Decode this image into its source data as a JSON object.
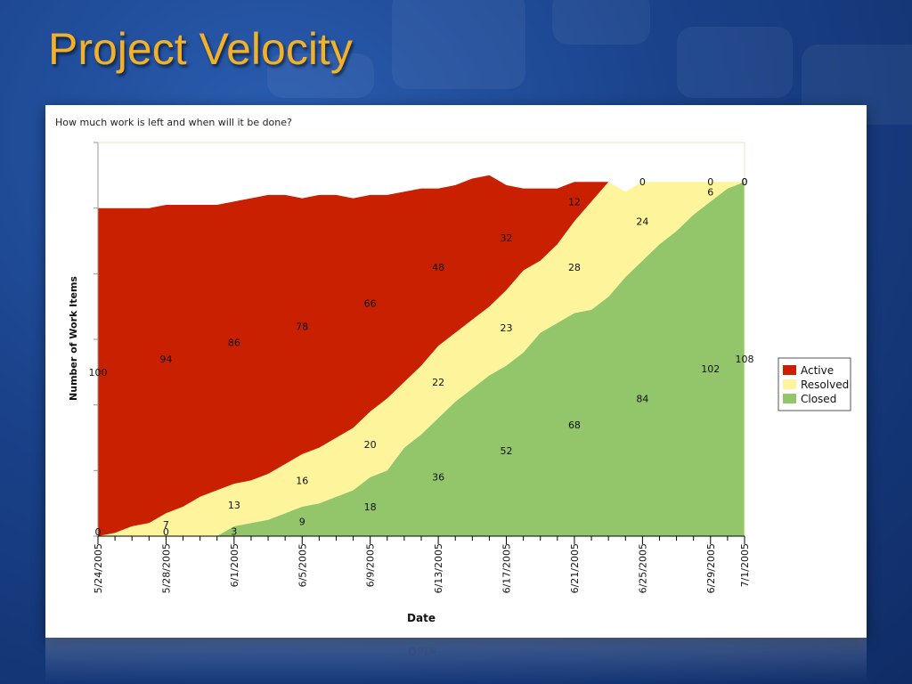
{
  "slide": {
    "title": "Project Velocity"
  },
  "chart_data": {
    "type": "area",
    "stacked": true,
    "title": "How much work is left and when will it be done?",
    "xlabel": "Date",
    "ylabel": "Number of Work Items",
    "x": [
      "5/24/2005",
      "5/25/2005",
      "5/26/2005",
      "5/27/2005",
      "5/28/2005",
      "5/29/2005",
      "5/30/2005",
      "5/31/2005",
      "6/1/2005",
      "6/2/2005",
      "6/3/2005",
      "6/4/2005",
      "6/5/2005",
      "6/6/2005",
      "6/7/2005",
      "6/8/2005",
      "6/9/2005",
      "6/10/2005",
      "6/11/2005",
      "6/12/2005",
      "6/13/2005",
      "6/14/2005",
      "6/15/2005",
      "6/16/2005",
      "6/17/2005",
      "6/18/2005",
      "6/19/2005",
      "6/20/2005",
      "6/21/2005",
      "6/22/2005",
      "6/23/2005",
      "6/24/2005",
      "6/25/2005",
      "6/26/2005",
      "6/27/2005",
      "6/28/2005",
      "6/29/2005",
      "6/30/2005",
      "7/1/2005"
    ],
    "x_tick_labels": [
      "5/24/2005",
      "5/28/2005",
      "6/1/2005",
      "6/5/2005",
      "6/9/2005",
      "6/13/2005",
      "6/17/2005",
      "6/21/2005",
      "6/25/2005",
      "6/29/2005",
      "7/1/2005"
    ],
    "series": [
      {
        "name": "Closed",
        "color": "#93c66a",
        "values": [
          0,
          0,
          0,
          0,
          0,
          0,
          0,
          0,
          3,
          4,
          5,
          7,
          9,
          10,
          12,
          14,
          18,
          20,
          27,
          31,
          36,
          41,
          45,
          49,
          52,
          56,
          62,
          65,
          68,
          69,
          73,
          79,
          84,
          89,
          93,
          98,
          102,
          106,
          108
        ]
      },
      {
        "name": "Resolved",
        "color": "#fdf49c",
        "values": [
          0,
          1,
          3,
          4,
          7,
          9,
          12,
          14,
          13,
          13,
          14,
          15,
          16,
          17,
          18,
          19,
          20,
          22,
          20,
          21,
          22,
          21,
          21,
          21,
          23,
          25,
          22,
          24,
          28,
          33,
          35,
          26,
          24,
          19,
          15,
          10,
          6,
          2,
          0
        ]
      },
      {
        "name": "Active",
        "color": "#c82000",
        "values": [
          100,
          99,
          97,
          96,
          94,
          92,
          89,
          87,
          86,
          86,
          85,
          82,
          78,
          77,
          74,
          70,
          66,
          62,
          58,
          54,
          48,
          45,
          43,
          40,
          32,
          25,
          22,
          17,
          12,
          6,
          0,
          0,
          0,
          0,
          0,
          0,
          0,
          0,
          0
        ]
      }
    ],
    "data_labels": [
      {
        "series": "Active",
        "x": "5/24/2005",
        "text": "100"
      },
      {
        "series": "Active",
        "x": "5/28/2005",
        "text": "94"
      },
      {
        "series": "Active",
        "x": "6/1/2005",
        "text": "86"
      },
      {
        "series": "Active",
        "x": "6/5/2005",
        "text": "78"
      },
      {
        "series": "Active",
        "x": "6/9/2005",
        "text": "66"
      },
      {
        "series": "Active",
        "x": "6/13/2005",
        "text": "48"
      },
      {
        "series": "Active",
        "x": "6/17/2005",
        "text": "32"
      },
      {
        "series": "Active",
        "x": "6/21/2005",
        "text": "12"
      },
      {
        "series": "Active",
        "x": "6/25/2005",
        "text": "0"
      },
      {
        "series": "Active",
        "x": "6/29/2005",
        "text": "0"
      },
      {
        "series": "Active",
        "x": "7/1/2005",
        "text": "0"
      },
      {
        "series": "Resolved",
        "x": "5/24/2005",
        "text": "0"
      },
      {
        "series": "Resolved",
        "x": "5/28/2005",
        "text": "7"
      },
      {
        "series": "Resolved",
        "x": "6/1/2005",
        "text": "13"
      },
      {
        "series": "Resolved",
        "x": "6/5/2005",
        "text": "16"
      },
      {
        "series": "Resolved",
        "x": "6/9/2005",
        "text": "20"
      },
      {
        "series": "Resolved",
        "x": "6/13/2005",
        "text": "22"
      },
      {
        "series": "Resolved",
        "x": "6/17/2005",
        "text": "23"
      },
      {
        "series": "Resolved",
        "x": "6/21/2005",
        "text": "28"
      },
      {
        "series": "Resolved",
        "x": "6/25/2005",
        "text": "24"
      },
      {
        "series": "Resolved",
        "x": "6/29/2005",
        "text": "6"
      },
      {
        "series": "Resolved",
        "x": "7/1/2005",
        "text": "0"
      },
      {
        "series": "Closed",
        "x": "5/28/2005",
        "text": "0"
      },
      {
        "series": "Closed",
        "x": "6/1/2005",
        "text": "3"
      },
      {
        "series": "Closed",
        "x": "6/5/2005",
        "text": "9"
      },
      {
        "series": "Closed",
        "x": "6/9/2005",
        "text": "18"
      },
      {
        "series": "Closed",
        "x": "6/13/2005",
        "text": "36"
      },
      {
        "series": "Closed",
        "x": "6/17/2005",
        "text": "52"
      },
      {
        "series": "Closed",
        "x": "6/21/2005",
        "text": "68"
      },
      {
        "series": "Closed",
        "x": "6/25/2005",
        "text": "84"
      },
      {
        "series": "Closed",
        "x": "6/29/2005",
        "text": "102"
      },
      {
        "series": "Closed",
        "x": "7/1/2005",
        "text": "108"
      }
    ],
    "legend": {
      "position": "right",
      "entries": [
        "Active",
        "Resolved",
        "Closed"
      ]
    },
    "ylim": [
      0,
      120
    ],
    "grid": false
  }
}
